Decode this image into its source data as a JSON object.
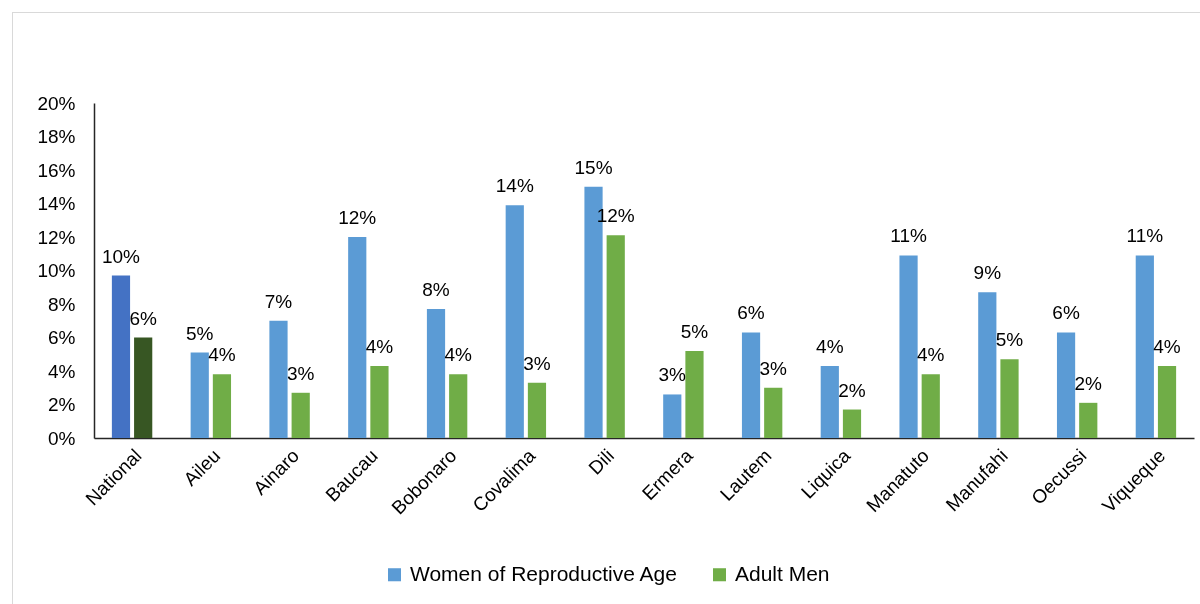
{
  "chart_data": {
    "type": "bar",
    "categories": [
      "National",
      "Aileu",
      "Ainaro",
      "Baucau",
      "Bobonaro",
      "Covalima",
      "Dili",
      "Ermera",
      "Lautem",
      "Liquica",
      "Manatuto",
      "Manufahi",
      "Oecussi",
      "Viqueque"
    ],
    "series": [
      {
        "name": "Women of Reproductive Age",
        "color": "#5b9bd5",
        "colors": [
          "#4472c4",
          "#5b9bd5",
          "#5b9bd5",
          "#5b9bd5",
          "#5b9bd5",
          "#5b9bd5",
          "#5b9bd5",
          "#5b9bd5",
          "#5b9bd5",
          "#5b9bd5",
          "#5b9bd5",
          "#5b9bd5",
          "#5b9bd5",
          "#5b9bd5"
        ],
        "values": [
          9.7,
          5.1,
          7.0,
          12.0,
          7.7,
          13.9,
          15.0,
          2.6,
          6.3,
          4.3,
          10.9,
          8.7,
          6.3,
          10.9
        ],
        "value_labels": [
          "10%",
          "5%",
          "7%",
          "12%",
          "8%",
          "14%",
          "15%",
          "3%",
          "6%",
          "4%",
          "11%",
          "9%",
          "6%",
          "11%"
        ]
      },
      {
        "name": "Adult Men",
        "color": "#70ad47",
        "colors": [
          "#375623",
          "#70ad47",
          "#70ad47",
          "#70ad47",
          "#70ad47",
          "#70ad47",
          "#70ad47",
          "#70ad47",
          "#70ad47",
          "#70ad47",
          "#70ad47",
          "#70ad47",
          "#70ad47",
          "#70ad47"
        ],
        "values": [
          6.0,
          3.8,
          2.7,
          4.3,
          3.8,
          3.3,
          12.1,
          5.2,
          3.0,
          1.7,
          3.8,
          4.7,
          2.1,
          4.3
        ],
        "value_labels": [
          "6%",
          "4%",
          "3%",
          "4%",
          "4%",
          "3%",
          "12%",
          "5%",
          "3%",
          "2%",
          "4%",
          "5%",
          "2%",
          "4%"
        ]
      }
    ],
    "ylim": [
      0,
      20
    ],
    "yticks": [
      {
        "value": 0,
        "label": "0%"
      },
      {
        "value": 2,
        "label": "2%"
      },
      {
        "value": 4,
        "label": "4%"
      },
      {
        "value": 6,
        "label": "6%"
      },
      {
        "value": 8,
        "label": "8%"
      },
      {
        "value": 10,
        "label": "10%"
      },
      {
        "value": 12,
        "label": "12%"
      },
      {
        "value": 14,
        "label": "14%"
      },
      {
        "value": 16,
        "label": "16%"
      },
      {
        "value": 18,
        "label": "18%"
      },
      {
        "value": 20,
        "label": "20%"
      }
    ],
    "legend": "bottom"
  }
}
